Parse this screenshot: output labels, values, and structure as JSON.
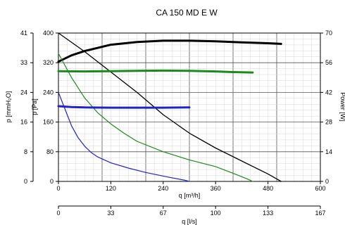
{
  "chart_data": {
    "type": "line",
    "title": "CA 150 MD E W",
    "x_axis": {
      "label": "q [m³/h]",
      "range": [
        0,
        600
      ],
      "ticks": [
        0,
        120,
        240,
        360,
        480,
        600
      ]
    },
    "x2_axis": {
      "label": "q [l/s]",
      "range": [
        0,
        167
      ],
      "ticks": [
        0,
        33,
        67,
        100,
        133,
        167
      ]
    },
    "y_axis_pa": {
      "label": "p [Pa]",
      "range": [
        0,
        400
      ],
      "ticks": [
        0,
        80,
        160,
        240,
        320,
        400
      ]
    },
    "y_axis_mmh2o": {
      "label": "p [mmH₂O]",
      "ticks": [
        0,
        8,
        16,
        24,
        33,
        41
      ]
    },
    "y_axis_power": {
      "label": "Power [W]",
      "range": [
        0,
        70
      ],
      "ticks": [
        0,
        14,
        28,
        42,
        56,
        70
      ]
    },
    "grid": true,
    "series": [
      {
        "axis": "pa",
        "color": "#000000",
        "width": 1.3,
        "points": [
          [
            0,
            400
          ],
          [
            60,
            350
          ],
          [
            120,
            295
          ],
          [
            180,
            240
          ],
          [
            240,
            180
          ],
          [
            300,
            130
          ],
          [
            360,
            90
          ],
          [
            420,
            55
          ],
          [
            480,
            20
          ],
          [
            510,
            0
          ]
        ]
      },
      {
        "axis": "power",
        "color": "#000000",
        "width": 3,
        "points": [
          [
            0,
            56.5
          ],
          [
            30,
            59.5
          ],
          [
            60,
            61.5
          ],
          [
            120,
            64.5
          ],
          [
            180,
            65.8
          ],
          [
            240,
            66.4
          ],
          [
            300,
            66.4
          ],
          [
            360,
            66.1
          ],
          [
            420,
            65.6
          ],
          [
            480,
            65.2
          ],
          [
            510,
            64.9
          ]
        ]
      },
      {
        "axis": "pa",
        "color": "#1a8a1a",
        "width": 1.2,
        "points": [
          [
            0,
            345
          ],
          [
            30,
            280
          ],
          [
            60,
            225
          ],
          [
            90,
            185
          ],
          [
            120,
            155
          ],
          [
            150,
            130
          ],
          [
            180,
            108
          ],
          [
            240,
            80
          ],
          [
            300,
            58
          ],
          [
            360,
            40
          ],
          [
            400,
            22
          ],
          [
            430,
            8
          ],
          [
            445,
            0
          ]
        ]
      },
      {
        "axis": "power",
        "color": "#1a8a1a",
        "width": 3,
        "points": [
          [
            0,
            52
          ],
          [
            60,
            51.9
          ],
          [
            120,
            52
          ],
          [
            180,
            52.2
          ],
          [
            240,
            52.3
          ],
          [
            300,
            52.2
          ],
          [
            360,
            51.9
          ],
          [
            400,
            51.6
          ],
          [
            445,
            51.4
          ]
        ]
      },
      {
        "axis": "pa",
        "color": "#2222cc",
        "width": 1.2,
        "points": [
          [
            0,
            240
          ],
          [
            15,
            195
          ],
          [
            30,
            150
          ],
          [
            45,
            118
          ],
          [
            60,
            95
          ],
          [
            75,
            78
          ],
          [
            90,
            66
          ],
          [
            120,
            50
          ],
          [
            160,
            36
          ],
          [
            200,
            24
          ],
          [
            250,
            12
          ],
          [
            290,
            3
          ],
          [
            300,
            0
          ]
        ]
      },
      {
        "axis": "power",
        "color": "#2222cc",
        "width": 3,
        "points": [
          [
            0,
            35.5
          ],
          [
            30,
            35.1
          ],
          [
            60,
            34.9
          ],
          [
            120,
            34.8
          ],
          [
            180,
            34.8
          ],
          [
            240,
            34.8
          ],
          [
            300,
            34.9
          ]
        ]
      }
    ]
  }
}
